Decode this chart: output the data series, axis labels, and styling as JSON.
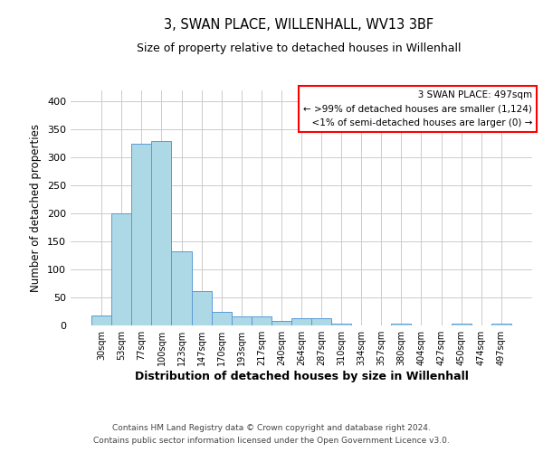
{
  "title": "3, SWAN PLACE, WILLENHALL, WV13 3BF",
  "subtitle": "Size of property relative to detached houses in Willenhall",
  "xlabel": "Distribution of detached houses by size in Willenhall",
  "ylabel": "Number of detached properties",
  "bar_color": "#add8e6",
  "bar_edge_color": "#5b9bd5",
  "bin_labels": [
    "30sqm",
    "53sqm",
    "77sqm",
    "100sqm",
    "123sqm",
    "147sqm",
    "170sqm",
    "193sqm",
    "217sqm",
    "240sqm",
    "264sqm",
    "287sqm",
    "310sqm",
    "334sqm",
    "357sqm",
    "380sqm",
    "404sqm",
    "427sqm",
    "450sqm",
    "474sqm",
    "497sqm"
  ],
  "bar_heights": [
    18,
    200,
    325,
    330,
    133,
    62,
    25,
    16,
    16,
    8,
    13,
    13,
    4,
    0,
    0,
    3,
    0,
    0,
    3,
    0,
    3
  ],
  "ylim": [
    0,
    420
  ],
  "yticks": [
    0,
    50,
    100,
    150,
    200,
    250,
    300,
    350,
    400
  ],
  "legend_title": "3 SWAN PLACE: 497sqm",
  "legend_line1": "← >99% of detached houses are smaller (1,124)",
  "legend_line2": "<1% of semi-detached houses are larger (0) →",
  "footer_line1": "Contains HM Land Registry data © Crown copyright and database right 2024.",
  "footer_line2": "Contains public sector information licensed under the Open Government Licence v3.0.",
  "background_color": "#ffffff",
  "grid_color": "#cccccc"
}
